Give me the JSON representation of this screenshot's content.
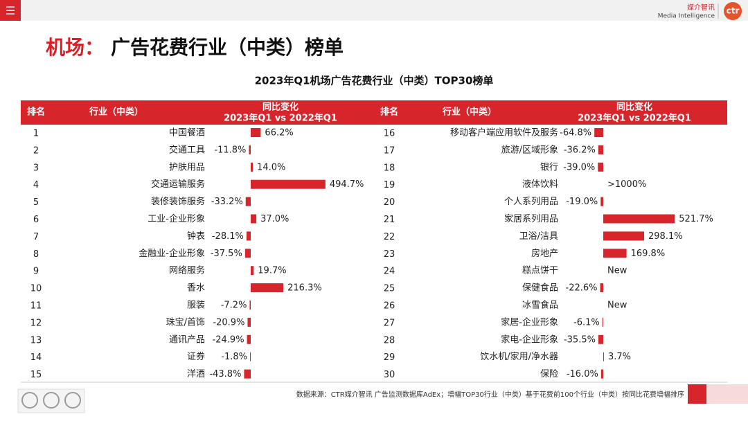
{
  "header": {
    "brand_cn": "媒介智讯",
    "brand_en": "Media Intelligence",
    "logo": "ctr"
  },
  "title_prefix": "机场：",
  "title": "广告花费行业（中类）榜单",
  "subtitle": "2023年Q1机场广告花费行业（中类）TOP30榜单",
  "table": {
    "columns": {
      "rank": "排名",
      "industry": "行业（中类）",
      "change": "同比变化",
      "period": "2023年Q1 vs 2022年Q1"
    },
    "left": [
      {
        "rank": 1,
        "industry": "中国餐酒",
        "value": 66.2,
        "value_label": "66.2%"
      },
      {
        "rank": 2,
        "industry": "交通工具",
        "value": -11.8,
        "value_label": "-11.8%"
      },
      {
        "rank": 3,
        "industry": "护肤用品",
        "value": 14.0,
        "value_label": "14.0%"
      },
      {
        "rank": 4,
        "industry": "交通运输服务",
        "value": 494.7,
        "value_label": "494.7%"
      },
      {
        "rank": 5,
        "industry": "装修装饰服务",
        "value": -33.2,
        "value_label": "-33.2%"
      },
      {
        "rank": 6,
        "industry": "工业-企业形象",
        "value": 37.0,
        "value_label": "37.0%"
      },
      {
        "rank": 7,
        "industry": "钟表",
        "value": -28.1,
        "value_label": "-28.1%"
      },
      {
        "rank": 8,
        "industry": "金融业-企业形象",
        "value": -37.5,
        "value_label": "-37.5%"
      },
      {
        "rank": 9,
        "industry": "网络服务",
        "value": 19.7,
        "value_label": "19.7%"
      },
      {
        "rank": 10,
        "industry": "香水",
        "value": 216.3,
        "value_label": "216.3%"
      },
      {
        "rank": 11,
        "industry": "服装",
        "value": -7.2,
        "value_label": "-7.2%"
      },
      {
        "rank": 12,
        "industry": "珠宝/首饰",
        "value": -20.9,
        "value_label": "-20.9%"
      },
      {
        "rank": 13,
        "industry": "通讯产品",
        "value": -24.9,
        "value_label": "-24.9%"
      },
      {
        "rank": 14,
        "industry": "证券",
        "value": -1.8,
        "value_label": "-1.8%"
      },
      {
        "rank": 15,
        "industry": "洋酒",
        "value": -43.8,
        "value_label": "-43.8%"
      }
    ],
    "right": [
      {
        "rank": 16,
        "industry": "移动客户端应用软件及服务",
        "value": -64.8,
        "value_label": "-64.8%"
      },
      {
        "rank": 17,
        "industry": "旅游/区域形象",
        "value": -36.2,
        "value_label": "-36.2%"
      },
      {
        "rank": 18,
        "industry": "银行",
        "value": -39.0,
        "value_label": "-39.0%"
      },
      {
        "rank": 19,
        "industry": "液体饮料",
        "value": null,
        "value_label": ">1000%"
      },
      {
        "rank": 20,
        "industry": "个人系列用品",
        "value": -19.0,
        "value_label": "-19.0%"
      },
      {
        "rank": 21,
        "industry": "家居系列用品",
        "value": 521.7,
        "value_label": "521.7%"
      },
      {
        "rank": 22,
        "industry": "卫浴/洁具",
        "value": 298.1,
        "value_label": "298.1%"
      },
      {
        "rank": 23,
        "industry": "房地产",
        "value": 169.8,
        "value_label": "169.8%"
      },
      {
        "rank": 24,
        "industry": "糕点饼干",
        "value": null,
        "value_label": "New"
      },
      {
        "rank": 25,
        "industry": "保健食品",
        "value": -22.6,
        "value_label": "-22.6%"
      },
      {
        "rank": 26,
        "industry": "冰雪食品",
        "value": null,
        "value_label": "New"
      },
      {
        "rank": 27,
        "industry": "家居-企业形象",
        "value": -6.1,
        "value_label": "-6.1%"
      },
      {
        "rank": 28,
        "industry": "家电-企业形象",
        "value": -35.5,
        "value_label": "-35.5%"
      },
      {
        "rank": 29,
        "industry": "饮水机/家用/净水器",
        "value": 3.7,
        "value_label": "3.7%"
      },
      {
        "rank": 30,
        "industry": "保险",
        "value": -16.0,
        "value_label": "-16.0%"
      }
    ]
  },
  "footer": "数据来源：CTR媒介智讯 广告监测数据库AdEx；增幅TOP30行业（中类）基于花费前100个行业（中类）按同比花费增幅排序"
}
